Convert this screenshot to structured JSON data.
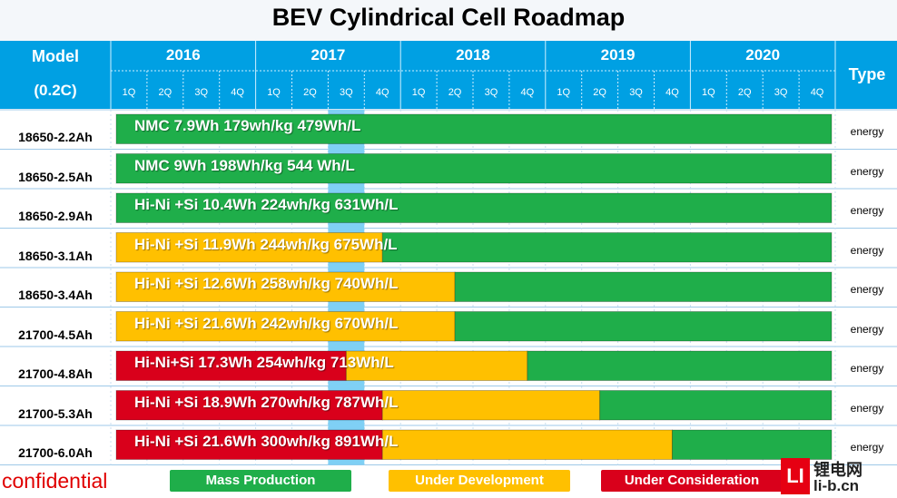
{
  "chart_data": {
    "type": "gantt",
    "title": "BEV Cylindrical Cell Roadmap",
    "header": {
      "model_label": "Model",
      "model_sublabel": "(0.2C)",
      "type_label": "Type"
    },
    "years": [
      "2016",
      "2017",
      "2018",
      "2019",
      "2020"
    ],
    "quarters": [
      "1Q",
      "2Q",
      "3Q",
      "4Q"
    ],
    "rows": [
      {
        "model": "18650-2.2Ah",
        "label": "NMC    7.9Wh   179wh/kg   479Wh/L",
        "type": "energy",
        "segments": [
          {
            "status": "mass",
            "start": "2016-1Q",
            "end": "2020-4Q"
          }
        ]
      },
      {
        "model": "18650-2.5Ah",
        "label": "NMC    9Wh    198Wh/kg    544 Wh/L",
        "type": "energy",
        "segments": [
          {
            "status": "mass",
            "start": "2016-1Q",
            "end": "2020-4Q"
          }
        ]
      },
      {
        "model": "18650-2.9Ah",
        "label": "Hi-Ni +Si    10.4Wh   224wh/kg  631Wh/L",
        "type": "energy",
        "segments": [
          {
            "status": "mass",
            "start": "2016-1Q",
            "end": "2020-4Q"
          }
        ]
      },
      {
        "model": "18650-3.1Ah",
        "label": "Hi-Ni +Si   11.9Wh   244wh/kg  675Wh/L",
        "type": "energy",
        "segments": [
          {
            "status": "dev",
            "start": "2016-1Q",
            "end": "2017-4Q"
          },
          {
            "status": "mass",
            "start": "2017-4Q",
            "end": "2020-4Q"
          }
        ]
      },
      {
        "model": "18650-3.4Ah",
        "label": "Hi-Ni +Si    12.6Wh   258wh/kg  740Wh/L",
        "type": "energy",
        "segments": [
          {
            "status": "dev",
            "start": "2016-1Q",
            "end": "2018-2Q"
          },
          {
            "status": "mass",
            "start": "2018-2Q",
            "end": "2020-4Q"
          }
        ]
      },
      {
        "model": "21700-4.5Ah",
        "label": "Hi-Ni +Si   21.6Wh   242wh/kg  670Wh/L",
        "type": "energy",
        "segments": [
          {
            "status": "dev",
            "start": "2016-1Q",
            "end": "2018-2Q"
          },
          {
            "status": "mass",
            "start": "2018-2Q",
            "end": "2020-4Q"
          }
        ]
      },
      {
        "model": "21700-4.8Ah",
        "label": "Hi-Ni+Si    17.3Wh  254wh/kg  713Wh/L",
        "type": "energy",
        "segments": [
          {
            "status": "consideration",
            "start": "2016-1Q",
            "end": "2017-3Q"
          },
          {
            "status": "dev",
            "start": "2017-3Q",
            "end": "2018-4Q"
          },
          {
            "status": "mass",
            "start": "2018-4Q",
            "end": "2020-4Q"
          }
        ]
      },
      {
        "model": "21700-5.3Ah",
        "label": "Hi-Ni +Si    18.9Wh   270wh/kg  787Wh/L",
        "type": "energy",
        "segments": [
          {
            "status": "consideration",
            "start": "2016-1Q",
            "end": "2017-4Q"
          },
          {
            "status": "dev",
            "start": "2017-4Q",
            "end": "2019-2Q"
          },
          {
            "status": "mass",
            "start": "2019-2Q",
            "end": "2020-4Q"
          }
        ]
      },
      {
        "model": "21700-6.0Ah",
        "label": "Hi-Ni +Si   21.6Wh   300wh/kg  891Wh/L",
        "type": "energy",
        "segments": [
          {
            "status": "consideration",
            "start": "2016-1Q",
            "end": "2017-4Q"
          },
          {
            "status": "dev",
            "start": "2017-4Q",
            "end": "2019-4Q"
          },
          {
            "status": "mass",
            "start": "2019-4Q",
            "end": "2020-4Q"
          }
        ]
      }
    ],
    "highlight_quarter": "2017-3Q",
    "legend": [
      {
        "status": "mass",
        "label": "Mass Production",
        "color": "#1fae4a"
      },
      {
        "status": "dev",
        "label": "Under Development",
        "color": "#ffc000"
      },
      {
        "status": "consideration",
        "label": "Under Consideration",
        "color": "#d9001b"
      }
    ],
    "colors": {
      "header_bg": "#00a0e3",
      "highlight": "#7fd0f5",
      "mass": "#1fae4a",
      "dev": "#ffc000",
      "consideration": "#d9001b"
    }
  },
  "footer": {
    "confidential": "confidential"
  },
  "watermark": {
    "text1": "锂电网",
    "text2": "li-b.cn",
    "logo": "LI"
  }
}
